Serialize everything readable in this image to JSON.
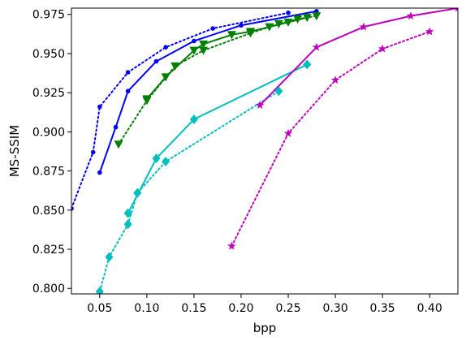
{
  "chart_data": {
    "type": "line",
    "title": "",
    "xlabel": "bpp",
    "ylabel": "MS-SSIM",
    "xlim": [
      0.02,
      0.43
    ],
    "ylim": [
      0.7965,
      0.979
    ],
    "xticks": [
      "0.05",
      "0.10",
      "0.15",
      "0.20",
      "0.25",
      "0.30",
      "0.35",
      "0.40"
    ],
    "yticks": [
      "0.800",
      "0.825",
      "0.850",
      "0.875",
      "0.900",
      "0.925",
      "0.950",
      "0.975"
    ],
    "grid": false,
    "legend": "none",
    "series": [
      {
        "color": "#0000ff",
        "style": "solid",
        "marker": "circle",
        "x": [
          0.05,
          0.067,
          0.08,
          0.11,
          0.15,
          0.2,
          0.28
        ],
        "y": [
          0.874,
          0.903,
          0.926,
          0.945,
          0.958,
          0.968,
          0.977
        ]
      },
      {
        "color": "#0000ff",
        "style": "dotted",
        "marker": "circle",
        "x": [
          0.02,
          0.043,
          0.05,
          0.08,
          0.12,
          0.17,
          0.25
        ],
        "y": [
          0.851,
          0.887,
          0.916,
          0.938,
          0.954,
          0.966,
          0.976
        ]
      },
      {
        "color": "#008000",
        "style": "solid",
        "marker": "triangle-down",
        "x": [
          0.1,
          0.12,
          0.15,
          0.16,
          0.19,
          0.21,
          0.23,
          0.25,
          0.27
        ],
        "y": [
          0.921,
          0.935,
          0.952,
          0.956,
          0.962,
          0.964,
          0.967,
          0.97,
          0.973
        ]
      },
      {
        "color": "#008000",
        "style": "dotted",
        "marker": "triangle-down",
        "x": [
          0.07,
          0.1,
          0.13,
          0.16,
          0.21,
          0.24,
          0.26,
          0.28
        ],
        "y": [
          0.892,
          0.92,
          0.942,
          0.952,
          0.963,
          0.969,
          0.972,
          0.974
        ]
      },
      {
        "color": "#00bfbf",
        "style": "solid",
        "marker": "diamond",
        "x": [
          0.08,
          0.11,
          0.15,
          0.27
        ],
        "y": [
          0.848,
          0.883,
          0.908,
          0.943
        ]
      },
      {
        "color": "#00bfbf",
        "style": "dotted",
        "marker": "diamond",
        "x": [
          0.05,
          0.06,
          0.08,
          0.09,
          0.12,
          0.24
        ],
        "y": [
          0.798,
          0.82,
          0.841,
          0.861,
          0.881,
          0.926
        ]
      },
      {
        "color": "#bf00bf",
        "style": "solid",
        "marker": "star",
        "x": [
          0.22,
          0.28,
          0.33,
          0.38,
          0.43
        ],
        "y": [
          0.917,
          0.954,
          0.967,
          0.974,
          0.979
        ]
      },
      {
        "color": "#bf00bf",
        "style": "dotted",
        "marker": "star",
        "x": [
          0.19,
          0.25,
          0.3,
          0.35,
          0.4
        ],
        "y": [
          0.827,
          0.899,
          0.933,
          0.953,
          0.964
        ]
      }
    ]
  }
}
